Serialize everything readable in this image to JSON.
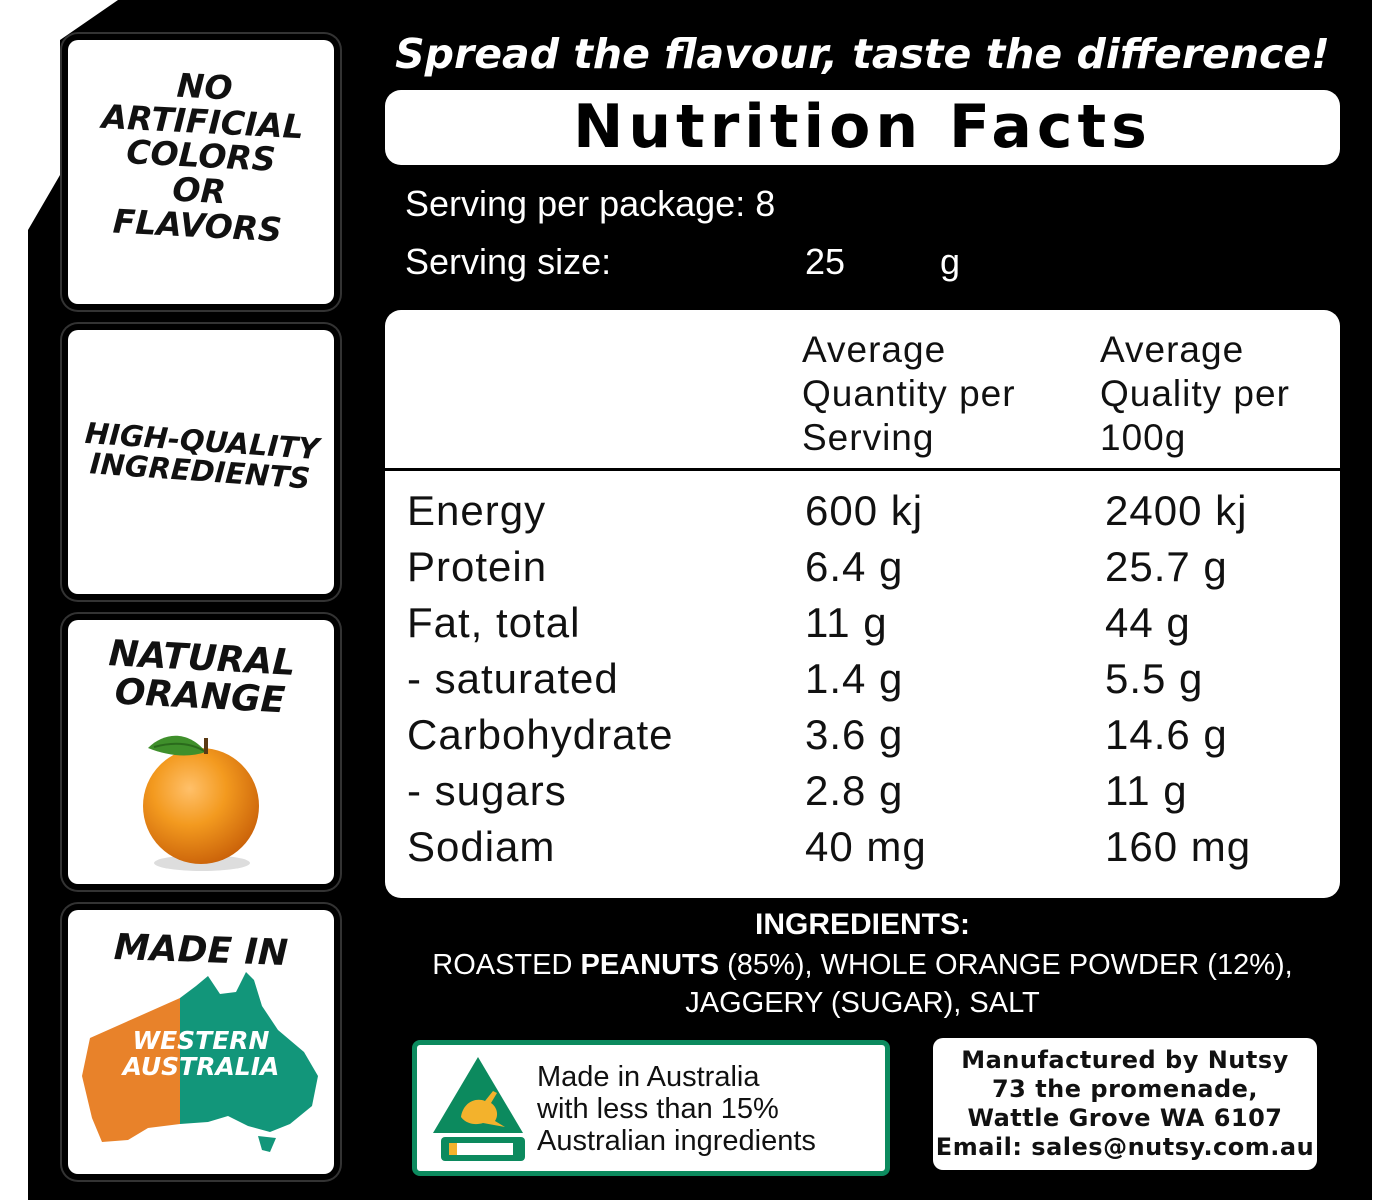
{
  "badges": {
    "no_artificial": "NO\nARTIFICIAL\nCOLORS\nOR\nFLAVORS",
    "high_quality": "HIGH-QUALITY\nINGREDIENTS",
    "natural_orange": "NATURAL\nORANGE",
    "made_in": "MADE IN",
    "region": "WESTERN\nAUSTRALIA"
  },
  "slogan": "Spread the flavour, taste the difference!",
  "title": "Nutrition Facts",
  "serving": {
    "per_package_label": "Serving per package:",
    "per_package_value": "8",
    "size_label": "Serving size:",
    "size_value": "25",
    "size_unit": "g"
  },
  "table": {
    "headers": [
      "Average\nQuantity per\nServing",
      "Average\nQuality per\n100g"
    ],
    "rows": [
      {
        "name": "Energy",
        "per_serving": "600 kj",
        "per_100g": "2400 kj"
      },
      {
        "name": "Protein",
        "per_serving": "6.4 g",
        "per_100g": "25.7 g"
      },
      {
        "name": "Fat, total",
        "per_serving": "11 g",
        "per_100g": "44 g"
      },
      {
        "name": "- saturated",
        "per_serving": "1.4 g",
        "per_100g": "5.5 g"
      },
      {
        "name": "Carbohydrate",
        "per_serving": "3.6 g",
        "per_100g": "14.6 g"
      },
      {
        "name": "- sugars",
        "per_serving": "2.8 g",
        "per_100g": "11 g"
      },
      {
        "name": "Sodiam",
        "per_serving": "40 mg",
        "per_100g": "160 mg"
      }
    ]
  },
  "ingredients": {
    "title": "INGREDIENTS:",
    "prefix": "ROASTED ",
    "highlight": "PEANUTS",
    "rest": " (85%), WHOLE ORANGE POWDER (12%),",
    "line2": "JAGGERY (SUGAR), SALT"
  },
  "origin": {
    "text": "Made in Australia\nwith less than 15%\nAustralian ingredients"
  },
  "manufacturer": {
    "text": "Manufactured by Nutsy\n73 the promenade,\nWattle Grove WA 6107\nEmail: sales@nutsy.com.au"
  },
  "colors": {
    "background": "#000000",
    "panel": "#ffffff",
    "wa_orange": "#e8822a",
    "australia_green": "#12967a",
    "logo_green": "#0c8a5e",
    "logo_gold": "#f3b22c"
  },
  "icons": [
    "orange-fruit-icon",
    "australia-map-icon",
    "kangaroo-triangle-icon"
  ]
}
